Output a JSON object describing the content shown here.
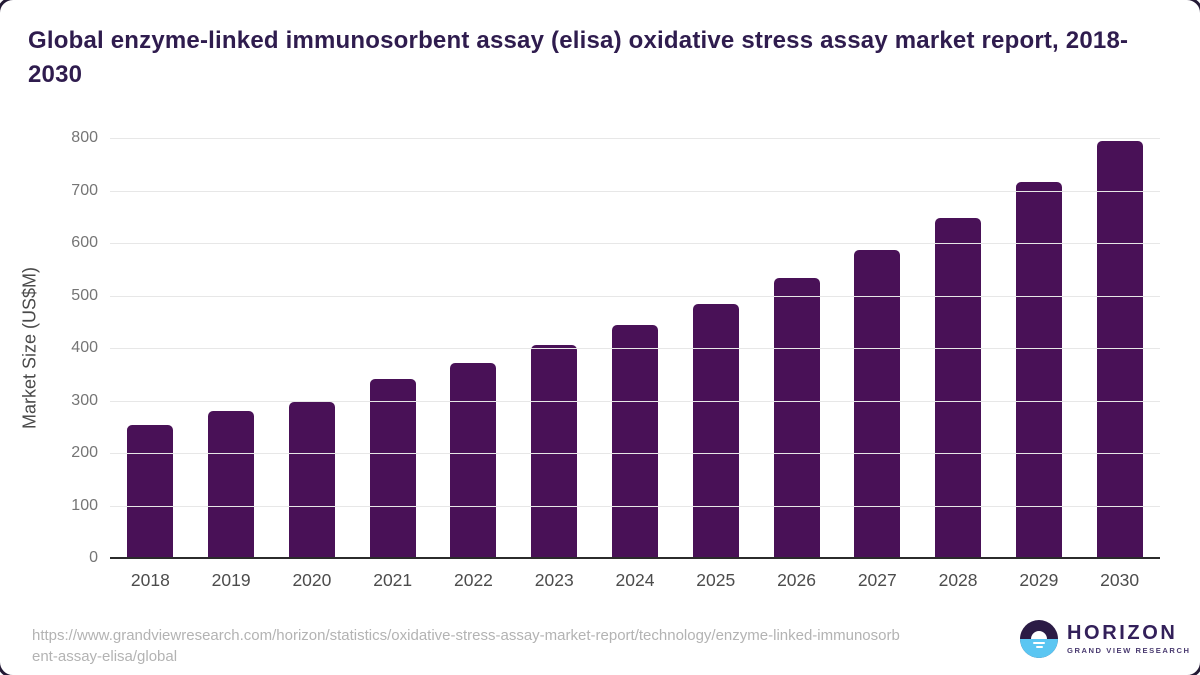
{
  "title": "Global enzyme-linked immunosorbent assay (elisa) oxidative stress assay market report, 2018-2030",
  "chart_data": {
    "type": "bar",
    "categories": [
      "2018",
      "2019",
      "2020",
      "2021",
      "2022",
      "2023",
      "2024",
      "2025",
      "2026",
      "2027",
      "2028",
      "2029",
      "2030"
    ],
    "values": [
      253,
      280,
      297,
      341,
      371,
      406,
      443,
      484,
      534,
      587,
      648,
      717,
      794
    ],
    "title": "Global enzyme-linked immunosorbent assay (elisa) oxidative stress assay market report, 2018-2030",
    "xlabel": "",
    "ylabel": "Market Size (US$M)",
    "ylim": [
      0,
      800
    ],
    "yticks": [
      0,
      100,
      200,
      300,
      400,
      500,
      600,
      700,
      800
    ],
    "grid": true,
    "legend": "none",
    "bar_color": "#491157"
  },
  "footer": {
    "source_url_line1": "https://www.grandviewresearch.com/horizon/statistics/oxidative-stress-assay-market-report/technology/enzyme-linked-immunosorb",
    "source_url_line2": "ent-assay-elisa/global",
    "logo_name": "HORIZON",
    "logo_subtitle": "GRAND VIEW RESEARCH"
  },
  "colors": {
    "bar": "#491157",
    "title_text": "#2f1c4e",
    "gridline": "#e7e7e7",
    "axis_line": "#2b2b2b",
    "tick_text": "#757575",
    "xtick_text": "#4c4c4c",
    "source_text": "#b3b3b3",
    "logo_dark": "#2b1b45",
    "logo_blue": "#5bc6f2",
    "frame": "#241a35"
  }
}
